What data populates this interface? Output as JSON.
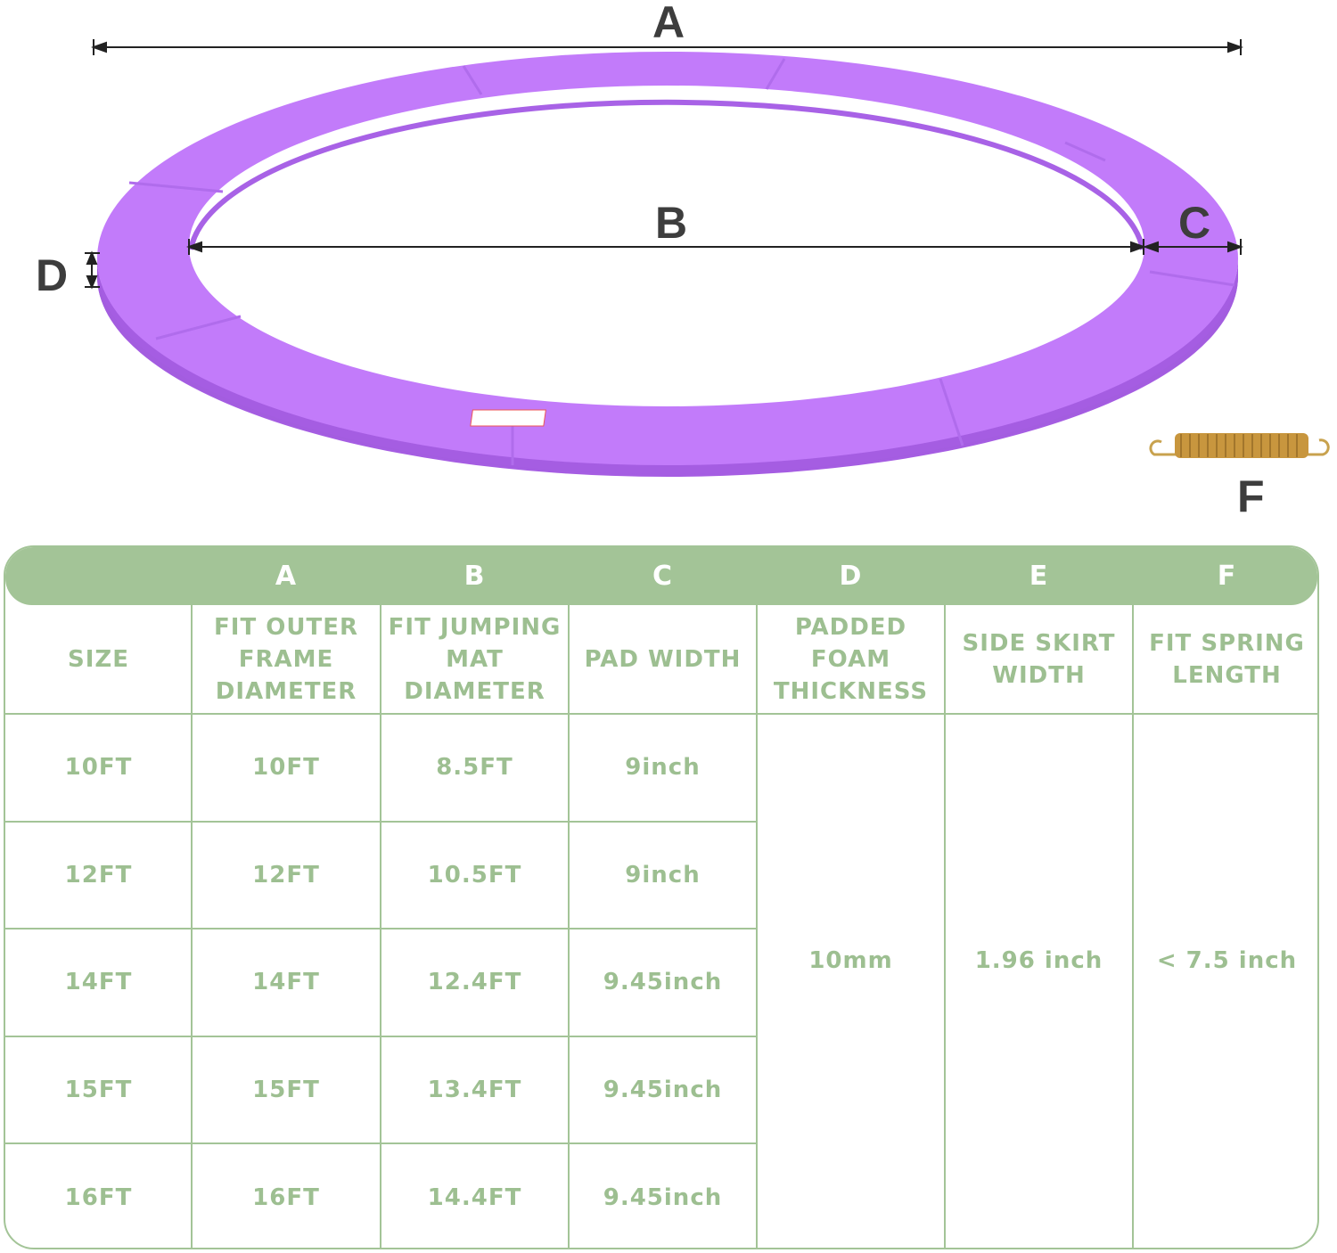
{
  "diagram": {
    "labels": {
      "a": "A",
      "b": "B",
      "c": "C",
      "d": "D",
      "f": "F"
    },
    "ring_color": "#c27bfa",
    "ring_side_color": "#a25ce0",
    "spring_color": "#c8963e"
  },
  "table": {
    "accent_color": "#a3c497",
    "letters": [
      "",
      "A",
      "B",
      "C",
      "D",
      "E",
      "F"
    ],
    "headers": [
      "SIZE",
      "FIT OUTER FRAME DIAMETER",
      "FIT JUMPING MAT DIAMETER",
      "PAD WIDTH",
      "PADDED FOAM THICKNESS",
      "SIDE SKIRT WIDTH",
      "FIT SPRING LENGTH"
    ],
    "rows": [
      {
        "size": "10FT",
        "outer": "10FT",
        "mat": "8.5FT",
        "pad": "9inch"
      },
      {
        "size": "12FT",
        "outer": "12FT",
        "mat": "10.5FT",
        "pad": "9inch"
      },
      {
        "size": "14FT",
        "outer": "14FT",
        "mat": "12.4FT",
        "pad": "9.45inch"
      },
      {
        "size": "15FT",
        "outer": "15FT",
        "mat": "13.4FT",
        "pad": "9.45inch"
      },
      {
        "size": "16FT",
        "outer": "16FT",
        "mat": "14.4FT",
        "pad": "9.45inch"
      }
    ],
    "shared": {
      "thickness": "10mm",
      "skirt": "1.96 inch",
      "spring": "< 7.5 inch"
    }
  }
}
